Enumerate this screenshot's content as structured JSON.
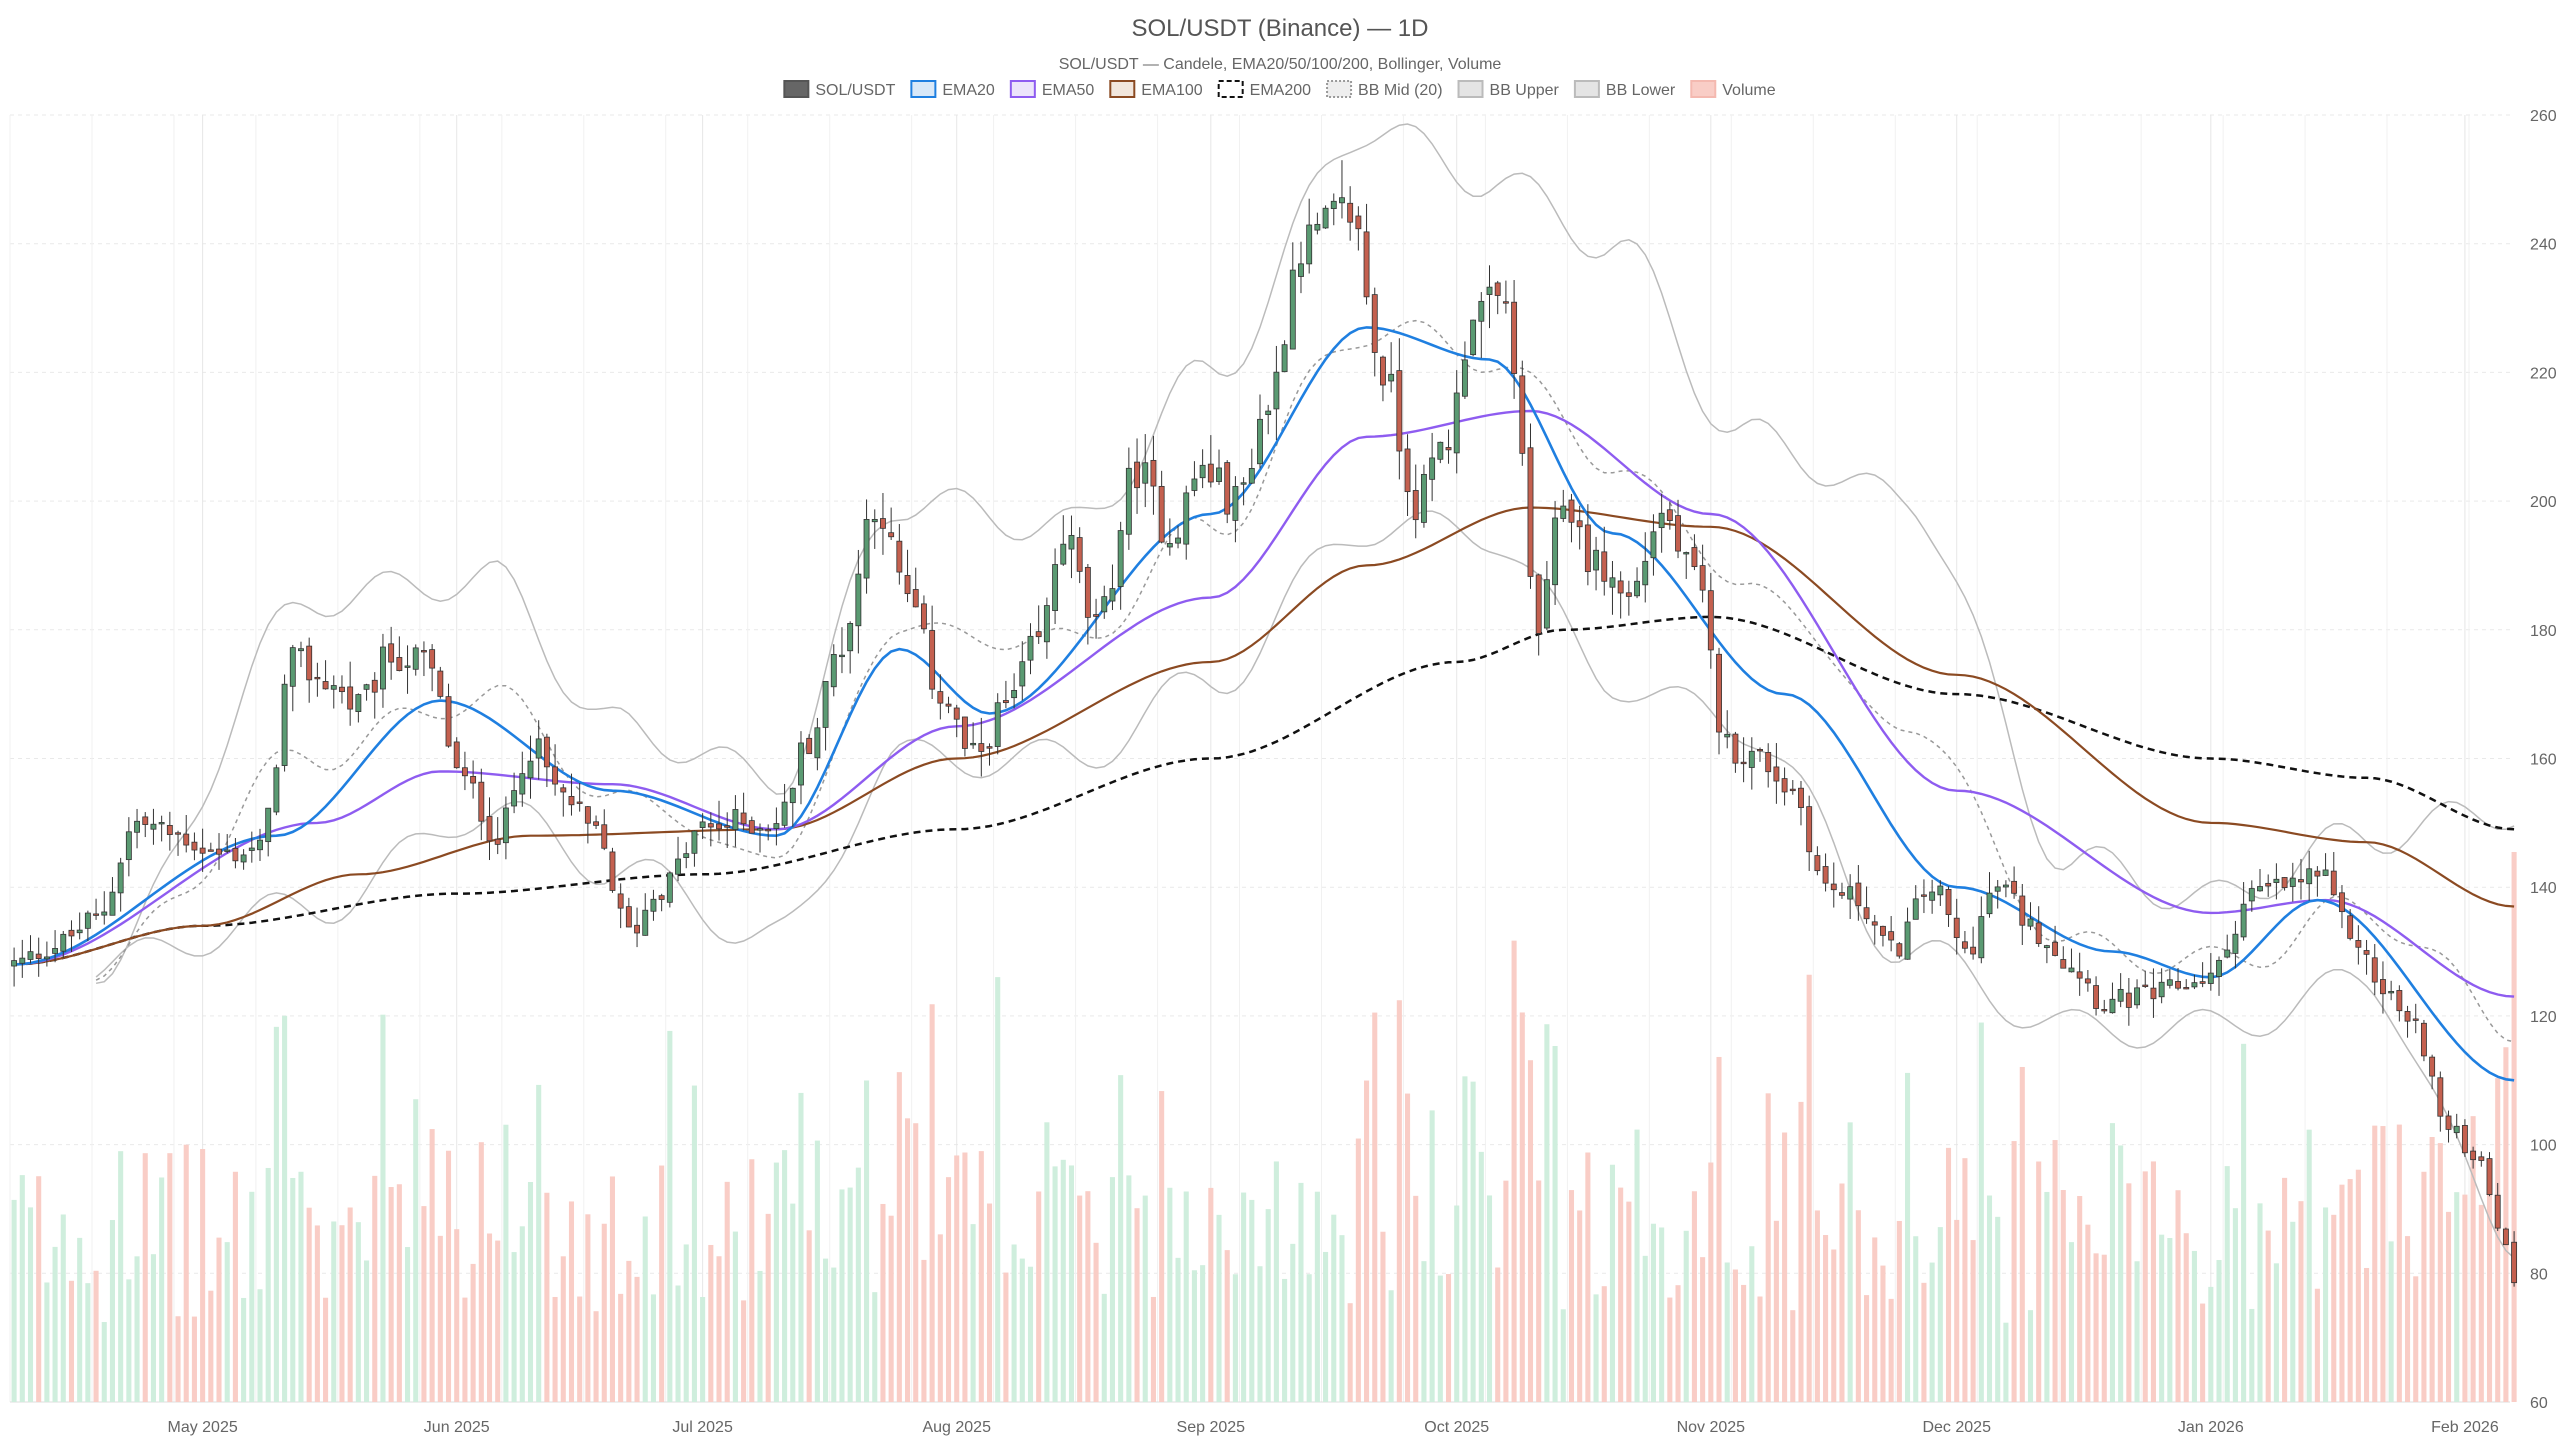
{
  "chart_data": {
    "type": "candlestick",
    "title": "SOL/USDT (Binance) — 1D",
    "subtitle": "SOL/USDT — Candele, EMA20/50/100/200, Bollinger, Volume",
    "legend": {
      "placement": "top-center",
      "items": [
        {
          "key": "candles",
          "label": "SOL/USDT",
          "color": "#555555",
          "fill": "#666666",
          "style": "solid"
        },
        {
          "key": "ema20",
          "label": "EMA20",
          "color": "#1f7fe0",
          "fill": "#d8e8f8",
          "style": "solid"
        },
        {
          "key": "ema50",
          "label": "EMA50",
          "color": "#8e5cf0",
          "fill": "#ece4fb",
          "style": "solid"
        },
        {
          "key": "ema100",
          "label": "EMA100",
          "color": "#8b4a22",
          "fill": "#f2e6dc",
          "style": "solid"
        },
        {
          "key": "ema200",
          "label": "EMA200",
          "color": "#111111",
          "fill": "#ffffff",
          "style": "dashed"
        },
        {
          "key": "bbmid",
          "label": "BB Mid (20)",
          "color": "#999999",
          "fill": "#eeeeee",
          "style": "dotted"
        },
        {
          "key": "bbupper",
          "label": "BB Upper",
          "color": "#bbbbbb",
          "fill": "#e4e4e4",
          "style": "solid"
        },
        {
          "key": "bblower",
          "label": "BB Lower",
          "color": "#bbbbbb",
          "fill": "#e4e4e4",
          "style": "solid"
        },
        {
          "key": "volume",
          "label": "Volume",
          "color": "#f4b9b0",
          "fill": "#f9cdc6",
          "style": "solid"
        }
      ]
    },
    "colors": {
      "up_body": "#5a9a72",
      "down_body": "#c4604f",
      "outline": "#333333",
      "vol_up": "#cfeedd",
      "vol_down": "#f9cdc6"
    },
    "y_axis": {
      "position": "right",
      "min": 60,
      "max": 260,
      "ticks": [
        "60",
        "80",
        "100",
        "120",
        "140",
        "160",
        "180",
        "200",
        "220",
        "240",
        "260"
      ]
    },
    "x_axis": {
      "start_date": "2025-04-08",
      "end_date": "2026-02-07",
      "ticks": [
        {
          "date": "2025-05-01",
          "label": "May 2025"
        },
        {
          "date": "2025-06-01",
          "label": "Jun 2025"
        },
        {
          "date": "2025-07-01",
          "label": "Jul 2025"
        },
        {
          "date": "2025-08-01",
          "label": "Aug 2025"
        },
        {
          "date": "2025-09-01",
          "label": "Sep 2025"
        },
        {
          "date": "2025-10-01",
          "label": "Oct 2025"
        },
        {
          "date": "2025-11-01",
          "label": "Nov 2025"
        },
        {
          "date": "2025-12-01",
          "label": "Dec 2025"
        },
        {
          "date": "2026-01-01",
          "label": "Jan 2026"
        },
        {
          "date": "2026-02-01",
          "label": "Feb 2026"
        }
      ]
    },
    "grid": true,
    "close_anchors": [
      [
        "2025-04-08",
        128
      ],
      [
        "2025-04-13",
        131
      ],
      [
        "2025-04-18",
        135
      ],
      [
        "2025-04-23",
        150
      ],
      [
        "2025-04-28",
        148
      ],
      [
        "2025-05-03",
        145
      ],
      [
        "2025-05-08",
        146
      ],
      [
        "2025-05-12",
        175
      ],
      [
        "2025-05-16",
        172
      ],
      [
        "2025-05-20",
        168
      ],
      [
        "2025-05-24",
        176
      ],
      [
        "2025-05-28",
        175
      ],
      [
        "2025-06-02",
        156
      ],
      [
        "2025-06-06",
        148
      ],
      [
        "2025-06-10",
        162
      ],
      [
        "2025-06-14",
        154
      ],
      [
        "2025-06-18",
        148
      ],
      [
        "2025-06-22",
        133
      ],
      [
        "2025-06-26",
        140
      ],
      [
        "2025-07-01",
        149
      ],
      [
        "2025-07-05",
        150
      ],
      [
        "2025-07-10",
        150
      ],
      [
        "2025-07-14",
        163
      ],
      [
        "2025-07-18",
        178
      ],
      [
        "2025-07-22",
        200
      ],
      [
        "2025-07-26",
        185
      ],
      [
        "2025-07-30",
        170
      ],
      [
        "2025-08-03",
        160
      ],
      [
        "2025-08-07",
        168
      ],
      [
        "2025-08-11",
        178
      ],
      [
        "2025-08-14",
        195
      ],
      [
        "2025-08-18",
        180
      ],
      [
        "2025-08-23",
        205
      ],
      [
        "2025-08-27",
        195
      ],
      [
        "2025-08-31",
        205
      ],
      [
        "2025-09-04",
        200
      ],
      [
        "2025-09-08",
        215
      ],
      [
        "2025-09-12",
        240
      ],
      [
        "2025-09-18",
        245
      ],
      [
        "2025-09-22",
        220
      ],
      [
        "2025-09-26",
        200
      ],
      [
        "2025-09-30",
        210
      ],
      [
        "2025-10-03",
        230
      ],
      [
        "2025-10-07",
        230
      ],
      [
        "2025-10-11",
        180
      ],
      [
        "2025-10-14",
        200
      ],
      [
        "2025-10-18",
        190
      ],
      [
        "2025-10-22",
        185
      ],
      [
        "2025-10-26",
        198
      ],
      [
        "2025-10-30",
        188
      ],
      [
        "2025-11-03",
        162
      ],
      [
        "2025-11-07",
        160
      ],
      [
        "2025-11-11",
        155
      ],
      [
        "2025-11-15",
        140
      ],
      [
        "2025-11-19",
        138
      ],
      [
        "2025-11-23",
        130
      ],
      [
        "2025-11-28",
        140
      ],
      [
        "2025-12-02",
        130
      ],
      [
        "2025-12-06",
        140
      ],
      [
        "2025-12-11",
        133
      ],
      [
        "2025-12-15",
        128
      ],
      [
        "2025-12-19",
        122
      ],
      [
        "2025-12-24",
        123
      ],
      [
        "2026-01-01",
        126
      ],
      [
        "2026-01-06",
        139
      ],
      [
        "2026-01-10",
        140
      ],
      [
        "2026-01-14",
        142
      ],
      [
        "2026-01-18",
        133
      ],
      [
        "2026-01-22",
        124
      ],
      [
        "2026-01-26",
        118
      ],
      [
        "2026-01-30",
        102
      ],
      [
        "2026-02-03",
        98
      ],
      [
        "2026-02-05",
        88
      ],
      [
        "2026-02-07",
        79
      ]
    ],
    "ema200_anchors": [
      [
        "2025-04-08",
        128
      ],
      [
        "2025-05-01",
        134
      ],
      [
        "2025-06-01",
        139
      ],
      [
        "2025-07-01",
        142
      ],
      [
        "2025-08-01",
        149
      ],
      [
        "2025-09-01",
        160
      ],
      [
        "2025-10-01",
        175
      ],
      [
        "2025-10-14",
        180
      ],
      [
        "2025-11-01",
        182
      ],
      [
        "2025-12-01",
        170
      ],
      [
        "2026-01-01",
        160
      ],
      [
        "2026-01-20",
        157
      ],
      [
        "2026-02-07",
        149
      ]
    ],
    "ema100_anchors": [
      [
        "2025-04-08",
        128
      ],
      [
        "2025-05-01",
        134
      ],
      [
        "2025-05-20",
        142
      ],
      [
        "2025-06-10",
        148
      ],
      [
        "2025-07-10",
        149
      ],
      [
        "2025-08-01",
        160
      ],
      [
        "2025-09-01",
        175
      ],
      [
        "2025-09-20",
        190
      ],
      [
        "2025-10-10",
        199
      ],
      [
        "2025-11-01",
        196
      ],
      [
        "2025-12-01",
        173
      ],
      [
        "2026-01-01",
        150
      ],
      [
        "2026-01-20",
        147
      ],
      [
        "2026-02-07",
        137
      ]
    ],
    "ema50_anchors": [
      [
        "2025-04-08",
        128
      ],
      [
        "2025-05-15",
        150
      ],
      [
        "2025-05-30",
        158
      ],
      [
        "2025-06-20",
        156
      ],
      [
        "2025-07-10",
        149
      ],
      [
        "2025-08-01",
        165
      ],
      [
        "2025-09-01",
        185
      ],
      [
        "2025-09-20",
        210
      ],
      [
        "2025-10-10",
        214
      ],
      [
        "2025-11-01",
        198
      ],
      [
        "2025-12-01",
        155
      ],
      [
        "2026-01-01",
        136
      ],
      [
        "2026-01-15",
        138
      ],
      [
        "2026-02-07",
        123
      ]
    ],
    "ema20_anchors": [
      [
        "2025-04-08",
        128
      ],
      [
        "2025-05-10",
        148
      ],
      [
        "2025-05-30",
        169
      ],
      [
        "2025-06-20",
        155
      ],
      [
        "2025-07-10",
        148
      ],
      [
        "2025-07-25",
        177
      ],
      [
        "2025-08-05",
        167
      ],
      [
        "2025-09-01",
        198
      ],
      [
        "2025-09-20",
        227
      ],
      [
        "2025-10-05",
        222
      ],
      [
        "2025-10-20",
        195
      ],
      [
        "2025-11-10",
        170
      ],
      [
        "2025-12-01",
        140
      ],
      [
        "2025-12-20",
        130
      ],
      [
        "2026-01-01",
        126
      ],
      [
        "2026-01-14",
        138
      ],
      [
        "2026-02-07",
        110
      ]
    ],
    "bb_upper_anchors": [
      [
        "2025-04-18",
        128
      ],
      [
        "2025-05-15",
        185
      ],
      [
        "2025-06-05",
        188
      ],
      [
        "2025-06-20",
        165
      ],
      [
        "2025-07-10",
        157
      ],
      [
        "2025-07-25",
        200
      ],
      [
        "2025-08-15",
        196
      ],
      [
        "2025-09-01",
        220
      ],
      [
        "2025-09-20",
        258
      ],
      [
        "2025-10-05",
        250
      ],
      [
        "2025-10-20",
        240
      ],
      [
        "2025-11-05",
        210
      ],
      [
        "2025-11-25",
        200
      ],
      [
        "2025-12-15",
        144
      ],
      [
        "2026-01-01",
        138
      ],
      [
        "2026-01-20",
        148
      ],
      [
        "2026-02-07",
        152
      ]
    ],
    "bb_lower_anchors": [
      [
        "2025-04-18",
        128
      ],
      [
        "2025-05-15",
        137
      ],
      [
        "2025-06-05",
        152
      ],
      [
        "2025-06-20",
        143
      ],
      [
        "2025-07-10",
        132
      ],
      [
        "2025-07-25",
        160
      ],
      [
        "2025-08-15",
        160
      ],
      [
        "2025-09-01",
        172
      ],
      [
        "2025-09-20",
        196
      ],
      [
        "2025-10-05",
        195
      ],
      [
        "2025-10-20",
        172
      ],
      [
        "2025-11-05",
        165
      ],
      [
        "2025-11-25",
        130
      ],
      [
        "2025-12-15",
        118
      ],
      [
        "2026-01-01",
        118
      ],
      [
        "2026-01-20",
        125
      ],
      [
        "2026-02-07",
        85
      ]
    ],
    "volume_scale_max": 260
  }
}
